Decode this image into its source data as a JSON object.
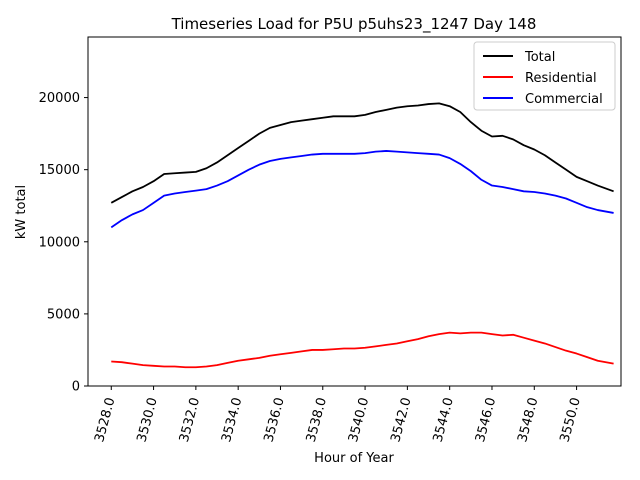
{
  "chart_data": {
    "type": "line",
    "title": "Timeseries Load for P5U p5uhs23_1247  Day 148",
    "xlabel": "Hour of Year",
    "ylabel": "kW total",
    "xlim": [
      3526.9,
      3552.1
    ],
    "ylim": [
      0,
      24200
    ],
    "xticks": [
      3528,
      3530,
      3532,
      3534,
      3536,
      3538,
      3540,
      3542,
      3544,
      3546,
      3548,
      3550
    ],
    "xtick_labels": [
      "3528.0",
      "3530.0",
      "3532.0",
      "3534.0",
      "3536.0",
      "3538.0",
      "3540.0",
      "3542.0",
      "3544.0",
      "3546.0",
      "3548.0",
      "3550.0"
    ],
    "yticks": [
      0,
      5000,
      10000,
      15000,
      20000
    ],
    "ytick_labels": [
      "0",
      "5000",
      "10000",
      "15000",
      "20000"
    ],
    "legend_position": "top-right",
    "x": [
      3528,
      3528.5,
      3529,
      3529.5,
      3530,
      3530.5,
      3531,
      3531.5,
      3532,
      3532.5,
      3533,
      3533.5,
      3534,
      3534.5,
      3535,
      3535.5,
      3536,
      3536.5,
      3537,
      3537.5,
      3538,
      3538.5,
      3539,
      3539.5,
      3540,
      3540.5,
      3541,
      3541.5,
      3542,
      3542.5,
      3543,
      3543.5,
      3544,
      3544.5,
      3545,
      3545.5,
      3546,
      3546.5,
      3547,
      3547.5,
      3548,
      3548.5,
      3549,
      3549.5,
      3550,
      3550.5,
      3551,
      3551.75
    ],
    "series": [
      {
        "name": "Total",
        "color": "#000000",
        "values": [
          12700,
          13100,
          13500,
          13800,
          14200,
          14700,
          14750,
          14800,
          14850,
          15100,
          15500,
          16000,
          16500,
          17000,
          17500,
          17900,
          18100,
          18300,
          18400,
          18500,
          18600,
          18700,
          18700,
          18700,
          18800,
          19000,
          19150,
          19300,
          19400,
          19450,
          19550,
          19600,
          19400,
          19000,
          18300,
          17700,
          17300,
          17350,
          17100,
          16700,
          16400,
          16000,
          15500,
          15000,
          14500,
          14200,
          13900,
          13500
        ]
      },
      {
        "name": "Residential",
        "color": "#ff0000",
        "values": [
          1700,
          1650,
          1550,
          1450,
          1400,
          1350,
          1350,
          1300,
          1300,
          1350,
          1450,
          1600,
          1750,
          1850,
          1950,
          2100,
          2200,
          2300,
          2400,
          2500,
          2500,
          2550,
          2600,
          2600,
          2650,
          2750,
          2850,
          2950,
          3100,
          3250,
          3450,
          3600,
          3700,
          3650,
          3700,
          3700,
          3600,
          3500,
          3550,
          3350,
          3150,
          2950,
          2700,
          2450,
          2250,
          2000,
          1750,
          1550
        ]
      },
      {
        "name": "Commercial",
        "color": "#0000ff",
        "values": [
          11000,
          11500,
          11900,
          12200,
          12700,
          13200,
          13350,
          13450,
          13550,
          13650,
          13900,
          14200,
          14600,
          15000,
          15350,
          15600,
          15750,
          15850,
          15950,
          16050,
          16100,
          16100,
          16100,
          16100,
          16150,
          16250,
          16300,
          16250,
          16200,
          16150,
          16100,
          16050,
          15800,
          15400,
          14900,
          14300,
          13900,
          13800,
          13650,
          13500,
          13450,
          13350,
          13200,
          13000,
          12700,
          12400,
          12200,
          12000
        ]
      }
    ]
  }
}
